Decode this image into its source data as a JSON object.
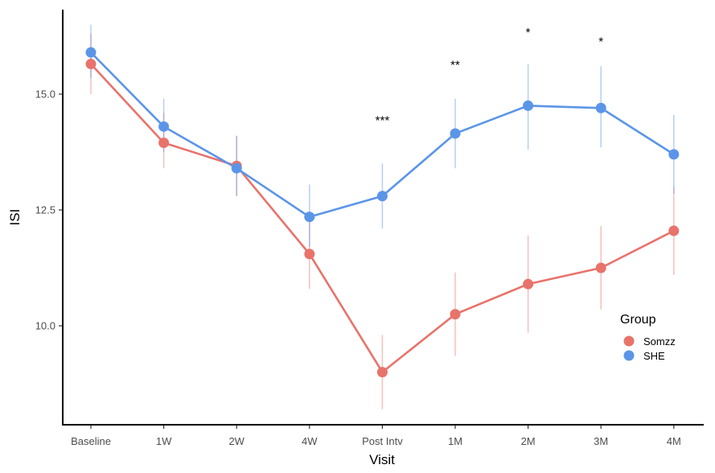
{
  "chart_data": {
    "type": "line",
    "xlabel": "Visit",
    "ylabel": "ISI",
    "ylim": [
      8.3,
      16.8
    ],
    "yticks": [
      10.0,
      12.5,
      15.0
    ],
    "ytick_labels": [
      "10.0",
      "12.5",
      "15.0"
    ],
    "categories": [
      "Baseline",
      "1W",
      "2W",
      "4W",
      "Post Intv",
      "1M",
      "2M",
      "3M",
      "4M"
    ],
    "grid": false,
    "legend": {
      "title": "Group",
      "position": "right",
      "entries": [
        "Somzz",
        "SHE"
      ]
    },
    "series": [
      {
        "name": "Somzz",
        "color": "#e8736b",
        "values": [
          15.65,
          13.95,
          13.45,
          11.55,
          9.0,
          10.25,
          10.9,
          11.25,
          12.05
        ],
        "error_low": [
          15.0,
          13.4,
          12.8,
          10.8,
          8.2,
          9.35,
          9.85,
          10.35,
          11.1
        ],
        "error_high": [
          16.3,
          14.6,
          14.1,
          12.3,
          9.8,
          11.15,
          11.95,
          12.15,
          13.0
        ]
      },
      {
        "name": "SHE",
        "color": "#5b95e8",
        "values": [
          15.9,
          14.3,
          13.4,
          12.35,
          12.8,
          14.15,
          14.75,
          14.7,
          13.7
        ],
        "error_low": [
          15.35,
          13.75,
          12.8,
          11.7,
          12.1,
          13.4,
          13.8,
          13.85,
          12.85
        ],
        "error_high": [
          16.5,
          14.9,
          14.1,
          13.05,
          13.5,
          14.9,
          15.65,
          15.6,
          14.55
        ]
      }
    ],
    "annotations": [
      {
        "category": "Post Intv",
        "text": "***",
        "y": 14.35
      },
      {
        "category": "1M",
        "text": "**",
        "y": 15.55
      },
      {
        "category": "2M",
        "text": "*",
        "y": 16.25
      },
      {
        "category": "3M",
        "text": "*",
        "y": 16.05
      }
    ]
  }
}
